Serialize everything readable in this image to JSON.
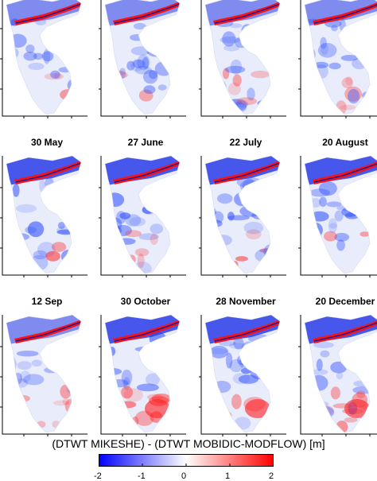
{
  "chart_data": {
    "type": "heatmap",
    "colorbar": {
      "label": "(DTWT MIKESHE) - (DTWT MOBIDIC-MODFLOW) [m]",
      "range": [
        -2,
        2
      ],
      "ticks": [
        "-2",
        "-1",
        "0",
        "1",
        "2"
      ],
      "colors": [
        "#0000ff",
        "#ffffff",
        "#ff0000"
      ]
    },
    "panels": [
      {
        "title": "",
        "row": 0,
        "col": 0,
        "north_band": "strong"
      },
      {
        "title": "",
        "row": 0,
        "col": 1,
        "north_band": "strong"
      },
      {
        "title": "",
        "row": 0,
        "col": 2,
        "north_band": "strong"
      },
      {
        "title": "",
        "row": 0,
        "col": 3,
        "north_band": "strong"
      },
      {
        "title": "30 May",
        "row": 1,
        "col": 0,
        "north_band": "strong"
      },
      {
        "title": "27 June",
        "row": 1,
        "col": 1,
        "north_band": "strong"
      },
      {
        "title": "22 July",
        "row": 1,
        "col": 2,
        "north_band": "strong"
      },
      {
        "title": "20 August",
        "row": 1,
        "col": 3,
        "north_band": "strong"
      },
      {
        "title": "12 Sep",
        "row": 2,
        "col": 0,
        "north_band": "strong"
      },
      {
        "title": "30 October",
        "row": 2,
        "col": 1,
        "north_band": "strong"
      },
      {
        "title": "28 November",
        "row": 2,
        "col": 2,
        "north_band": "strong"
      },
      {
        "title": "20 December",
        "row": 2,
        "col": 3,
        "north_band": "strong"
      }
    ]
  }
}
